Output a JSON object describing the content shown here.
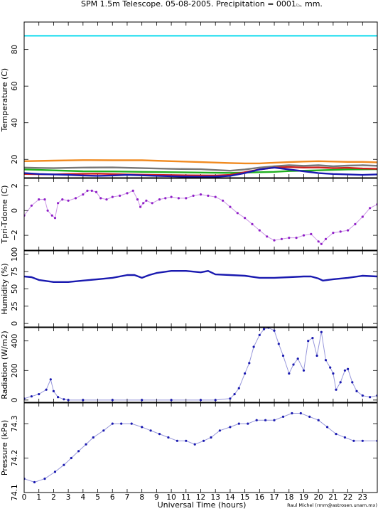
{
  "title": "SPM 1.5m Telescope. 05-08-2005. Precipitation = 0001⌳ mm.",
  "credit": "Raul Michel (rmm@astrosen.unam.mx)",
  "xlabel": "Universal Time (hours)",
  "x_ticks": [
    "0",
    "1",
    "2",
    "3",
    "4",
    "5",
    "6",
    "7",
    "8",
    "9",
    "10",
    "11",
    "12",
    "13",
    "14",
    "15",
    "16",
    "17",
    "18",
    "19",
    "20",
    "21",
    "22",
    "23"
  ],
  "chart_data": [
    {
      "type": "line",
      "ylabel": "Temperature (C)",
      "xlim": [
        0,
        24
      ],
      "ylim": [
        10,
        95
      ],
      "y_ticks": [
        {
          "v": 20,
          "label": "20"
        },
        {
          "v": 40,
          "label": "40"
        },
        {
          "v": 60,
          "label": "60"
        },
        {
          "v": 80,
          "label": "80"
        }
      ],
      "series": [
        {
          "color": "#33e0f0",
          "x": [
            0,
            24
          ],
          "y": [
            87.5,
            87.5
          ]
        },
        {
          "color": "#f08a20",
          "x": [
            0,
            2,
            4,
            6,
            8,
            10,
            12,
            14,
            15,
            16,
            17,
            18,
            19,
            20,
            21,
            22,
            23,
            24
          ],
          "y": [
            19,
            19.3,
            19.6,
            19.5,
            19.5,
            19,
            18.5,
            18,
            17.8,
            17.8,
            18.2,
            18.5,
            18.8,
            19,
            18.8,
            18.6,
            18.6,
            18.4
          ]
        },
        {
          "color": "#777777",
          "x": [
            0,
            1,
            2,
            4,
            6,
            8,
            10,
            12,
            13,
            14,
            15,
            16,
            17,
            18,
            19,
            20,
            21,
            22,
            23,
            24
          ],
          "y": [
            15.5,
            15.3,
            15.2,
            15.5,
            15.6,
            15.2,
            14.8,
            14.6,
            14.2,
            13.8,
            14.5,
            15.5,
            16.2,
            16.8,
            16.5,
            16.8,
            16.2,
            16.6,
            16.8,
            16.5
          ]
        },
        {
          "color": "#20b020",
          "x": [
            0,
            2,
            4,
            6,
            8,
            10,
            12,
            14,
            16,
            17,
            18,
            20,
            22,
            24
          ],
          "y": [
            14.5,
            14,
            13.5,
            13.4,
            13.2,
            13,
            12.8,
            12.6,
            13,
            13.2,
            13.6,
            14,
            14.5,
            14.6
          ]
        },
        {
          "color": "#d02020",
          "x": [
            0,
            2,
            3,
            5,
            7,
            9,
            11,
            13,
            14,
            15,
            16,
            17,
            18,
            19,
            20,
            21,
            22,
            23,
            24
          ],
          "y": [
            12,
            11.8,
            12,
            12.2,
            11.8,
            11.5,
            11.3,
            11.2,
            11.5,
            13,
            14.5,
            15.5,
            15.8,
            15.5,
            15.6,
            15.2,
            15.4,
            15,
            14.8
          ]
        },
        {
          "color": "#1a1ab0",
          "x": [
            0,
            1,
            2,
            3,
            4,
            5,
            6,
            7,
            8,
            9,
            10,
            11,
            12,
            13,
            14,
            15,
            16,
            17,
            18,
            19,
            20,
            21,
            22,
            23,
            24
          ],
          "y": [
            12.5,
            12,
            11.8,
            11.5,
            11.2,
            11,
            11.2,
            11.5,
            11.3,
            11,
            10.8,
            10.6,
            10.5,
            10.6,
            11,
            12.5,
            14.5,
            15.5,
            14.5,
            13.5,
            12.5,
            12,
            11.8,
            11.5,
            11.8
          ]
        }
      ]
    },
    {
      "type": "scatter",
      "ylabel": "Tpri-Tdome (C)",
      "xlim": [
        0,
        24
      ],
      "ylim": [
        -3.2,
        2.6
      ],
      "y_ticks": [
        {
          "v": -2,
          "label": "−2"
        },
        {
          "v": 0,
          "label": "0"
        },
        {
          "v": 2,
          "label": "2"
        }
      ],
      "series": [
        {
          "color": "#9020c8",
          "x": [
            0,
            0.5,
            1,
            1.4,
            1.6,
            1.9,
            2.1,
            2.3,
            2.6,
            3,
            3.5,
            4,
            4.3,
            4.6,
            4.9,
            5.2,
            5.6,
            6,
            6.5,
            7,
            7.4,
            7.7,
            7.9,
            8.1,
            8.3,
            8.7,
            9.2,
            9.6,
            10,
            10.5,
            11,
            11.5,
            12,
            12.5,
            13,
            13.5,
            14,
            14.5,
            15,
            15.5,
            16,
            16.5,
            17,
            17.5,
            18,
            18.5,
            19,
            19.5,
            20,
            20.2,
            20.5,
            21,
            21.5,
            22,
            22.5,
            23,
            23.5,
            24
          ],
          "y": [
            -0.4,
            0.4,
            0.9,
            0.9,
            0,
            -0.4,
            -0.6,
            0.6,
            0.9,
            0.8,
            1.0,
            1.3,
            1.6,
            1.6,
            1.5,
            1.0,
            0.9,
            1.1,
            1.2,
            1.4,
            1.6,
            0.9,
            0.3,
            0.6,
            0.8,
            0.6,
            0.9,
            1.0,
            1.1,
            1.0,
            1.0,
            1.2,
            1.3,
            1.2,
            1.1,
            0.8,
            0.3,
            -0.2,
            -0.6,
            -1.1,
            -1.6,
            -2.1,
            -2.4,
            -2.3,
            -2.2,
            -2.2,
            -2.0,
            -1.9,
            -2.5,
            -2.7,
            -2.3,
            -1.8,
            -1.7,
            -1.6,
            -1.1,
            -0.5,
            0.2,
            0.5
          ]
        }
      ]
    },
    {
      "type": "line",
      "ylabel": "Humidity (%)",
      "xlim": [
        0,
        24
      ],
      "ylim": [
        -5,
        105
      ],
      "y_ticks": [
        {
          "v": 0,
          "label": "0"
        },
        {
          "v": 25,
          "label": "25"
        },
        {
          "v": 50,
          "label": "50"
        },
        {
          "v": 75,
          "label": "75"
        },
        {
          "v": 100,
          "label": "100"
        }
      ],
      "series": [
        {
          "color": "#1a1ab0",
          "x": [
            0,
            0.5,
            1,
            2,
            3,
            4,
            5,
            6,
            7,
            7.5,
            8,
            8.5,
            9,
            10,
            11,
            12,
            12.5,
            13,
            14,
            15,
            16,
            17,
            18,
            19,
            19.5,
            20,
            20.3,
            21,
            22,
            23,
            24
          ],
          "y": [
            68,
            67,
            63,
            60,
            60,
            62,
            64,
            66,
            70,
            70,
            66,
            70,
            73,
            76,
            76,
            74,
            76,
            71,
            70,
            69,
            66,
            66,
            67,
            68,
            68,
            65,
            62,
            64,
            66,
            69,
            68
          ]
        }
      ]
    },
    {
      "type": "scatter",
      "ylabel": "Radiation (W/m2)",
      "xlim": [
        0,
        24
      ],
      "ylim": [
        -15,
        490
      ],
      "y_ticks": [
        {
          "v": 0,
          "label": "0"
        },
        {
          "v": 200,
          "label": "200"
        },
        {
          "v": 400,
          "label": "400"
        }
      ],
      "series": [
        {
          "color": "#1a1ab0",
          "x": [
            0,
            0.5,
            1,
            1.5,
            1.8,
            2,
            2.3,
            2.7,
            3,
            4,
            6,
            8,
            10,
            12,
            13,
            14,
            14.3,
            14.6,
            15,
            15.3,
            15.6,
            16,
            16.3,
            16.6,
            17,
            17.3,
            17.6,
            18,
            18.3,
            18.6,
            19,
            19.3,
            19.6,
            19.9,
            20.2,
            20.5,
            20.8,
            21,
            21.2,
            21.5,
            21.8,
            22,
            22.3,
            22.6,
            23,
            23.5,
            24
          ],
          "y": [
            10,
            25,
            40,
            70,
            140,
            60,
            20,
            5,
            0,
            0,
            0,
            0,
            0,
            0,
            0,
            10,
            40,
            80,
            180,
            250,
            360,
            440,
            480,
            490,
            470,
            380,
            300,
            180,
            240,
            280,
            200,
            400,
            420,
            300,
            460,
            270,
            220,
            180,
            70,
            120,
            200,
            210,
            120,
            60,
            30,
            20,
            30
          ]
        }
      ]
    },
    {
      "type": "scatter",
      "ylabel": "Pressure (kPa)",
      "xlim": [
        0,
        24
      ],
      "ylim": [
        74.1,
        74.36
      ],
      "y_ticks": [
        {
          "v": 74.1,
          "label": "74.1"
        },
        {
          "v": 74.2,
          "label": "74.2"
        },
        {
          "v": 74.3,
          "label": "74.3"
        }
      ],
      "series": [
        {
          "color": "#1a1ab0",
          "x": [
            0,
            0.7,
            1.4,
            2.1,
            2.7,
            3.2,
            3.7,
            4.2,
            4.7,
            5.4,
            6,
            6.6,
            7.3,
            8,
            8.6,
            9.2,
            9.8,
            10.4,
            11,
            11.6,
            12.2,
            12.7,
            13.3,
            14,
            14.6,
            15.2,
            15.8,
            16.4,
            17,
            17.6,
            18.2,
            18.8,
            19.4,
            20,
            20.6,
            21.2,
            21.8,
            22.4,
            23,
            24
          ],
          "y": [
            74.14,
            74.13,
            74.14,
            74.16,
            74.18,
            74.2,
            74.22,
            74.24,
            74.26,
            74.28,
            74.3,
            74.3,
            74.3,
            74.29,
            74.28,
            74.27,
            74.26,
            74.25,
            74.25,
            74.24,
            74.25,
            74.26,
            74.28,
            74.29,
            74.3,
            74.3,
            74.31,
            74.31,
            74.31,
            74.32,
            74.33,
            74.33,
            74.32,
            74.31,
            74.29,
            74.27,
            74.26,
            74.25,
            74.25,
            74.25
          ]
        }
      ]
    }
  ]
}
